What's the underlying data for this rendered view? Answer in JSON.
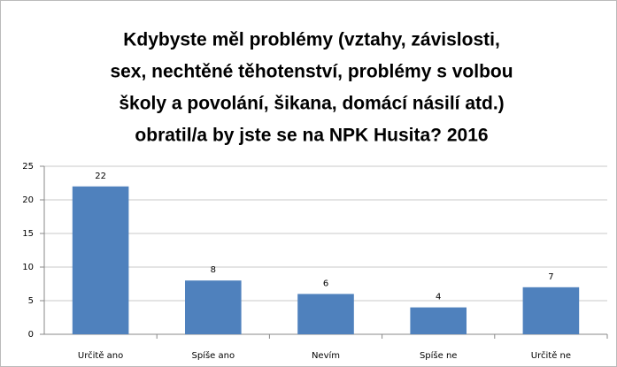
{
  "chart_data": {
    "type": "bar",
    "title": [
      "Kdybyste měl problémy (vztahy, závislosti,",
      "sex, nechtěné těhotenství, problémy s volbou",
      "školy a povolání, šikana, domácí násilí atd.)",
      "obratil/a by jste se na NPK Husita? 2016"
    ],
    "categories": [
      "Určitě ano",
      "Spíše ano",
      "Nevím",
      "Spíše ne",
      "Určitě ne"
    ],
    "values": [
      22,
      8,
      6,
      4,
      7
    ],
    "color": "#4f81bd",
    "ylim": [
      0,
      25
    ],
    "yticks": [
      0,
      5,
      10,
      15,
      20,
      25
    ],
    "grid": true
  }
}
